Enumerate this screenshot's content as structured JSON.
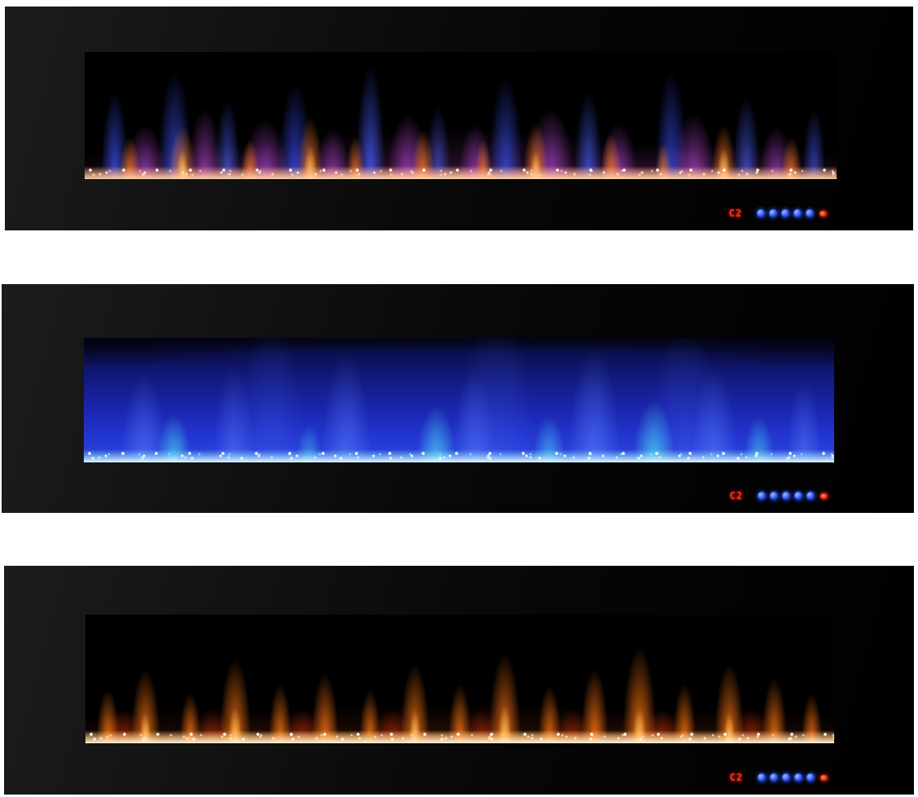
{
  "figure": {
    "description": "Wall-mounted linear electric fireplace shown in three flame color modes",
    "panels": [
      {
        "mode": "multicolor-flames",
        "led_display": "C2"
      },
      {
        "mode": "blue-flames",
        "led_display": "C2"
      },
      {
        "mode": "orange-flames",
        "led_display": "C2"
      }
    ],
    "control_panel": {
      "led_color": "#ff2a16",
      "touch_button_count": 5,
      "touch_button_color": "#2a50f0",
      "power_button_color": "#e02810"
    },
    "colors": {
      "page_background": "#ffffff",
      "frame_black": "#0d0d0d",
      "flame_blue": "#3e54fa",
      "flame_purple": "#b246d0",
      "flame_orange": "#ff7612",
      "flame_cyan": "#48cdee",
      "blue_field": "#1c2ab8",
      "crystal_bed_warm": "#ffd8a8",
      "crystal_bed_cool": "#e4f9ff",
      "crystal_bed_amber": "#fff2dc"
    }
  }
}
